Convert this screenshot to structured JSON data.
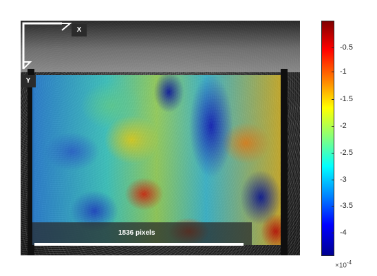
{
  "axes": {
    "x_label": "X",
    "y_label": "Y"
  },
  "scale_bar": {
    "label": "1836 pixels"
  },
  "colorbar": {
    "ticks": [
      "-0.5",
      "-1",
      "-1.5",
      "-2",
      "-2.5",
      "-3",
      "-3.5",
      "-4"
    ],
    "multiplier_base": "×10",
    "multiplier_exponent": "-4",
    "colormap": "jet"
  },
  "colors": {
    "overlay_low": "#0000ff",
    "overlay_high": "#ff0000"
  }
}
